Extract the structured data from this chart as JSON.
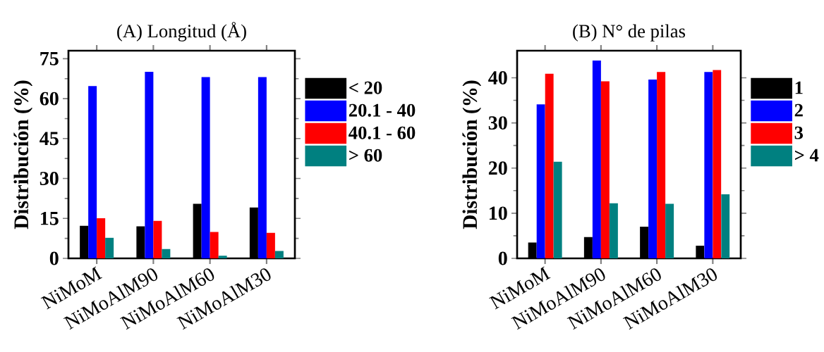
{
  "chart_data": [
    {
      "type": "bar",
      "title": "(A) Longitud (Å)",
      "ylabel": "Distribución (%)",
      "categories": [
        "NiMoM",
        "NiMoAlM90",
        "NiMoAlM60",
        "NiMoAlM30"
      ],
      "ylim": [
        0,
        78
      ],
      "yticks": [
        0,
        15,
        30,
        45,
        60,
        75
      ],
      "legend": "right",
      "series": [
        {
          "name": "< 20",
          "color": "#000000",
          "values": [
            12.2,
            12.0,
            20.5,
            19.1
          ]
        },
        {
          "name": "20.1 - 40",
          "color": "#0000ff",
          "values": [
            64.7,
            70.1,
            68.1,
            68.1
          ]
        },
        {
          "name": "40.1 - 60",
          "color": "#ff0000",
          "values": [
            15.1,
            14.1,
            9.9,
            9.6
          ]
        },
        {
          "name": "> 60",
          "color": "#008080",
          "values": [
            7.7,
            3.5,
            1.0,
            2.8
          ]
        }
      ]
    },
    {
      "type": "bar",
      "title": "(B) N° de pilas",
      "ylabel": "Distribución (%)",
      "categories": [
        "NiMoM",
        "NiMoAlM90",
        "NiMoAlM60",
        "NiMoAlM30"
      ],
      "ylim": [
        0,
        46
      ],
      "yticks": [
        0,
        10,
        20,
        30,
        40
      ],
      "legend": "right",
      "series": [
        {
          "name": "1",
          "color": "#000000",
          "values": [
            3.5,
            4.7,
            7.0,
            2.8
          ]
        },
        {
          "name": "2",
          "color": "#0000ff",
          "values": [
            34.1,
            43.8,
            39.6,
            41.3
          ]
        },
        {
          "name": "3",
          "color": "#ff0000",
          "values": [
            40.9,
            39.2,
            41.3,
            41.7
          ]
        },
        {
          "name": "> 4",
          "color": "#008080",
          "values": [
            21.4,
            12.2,
            12.1,
            14.2
          ]
        }
      ]
    }
  ]
}
